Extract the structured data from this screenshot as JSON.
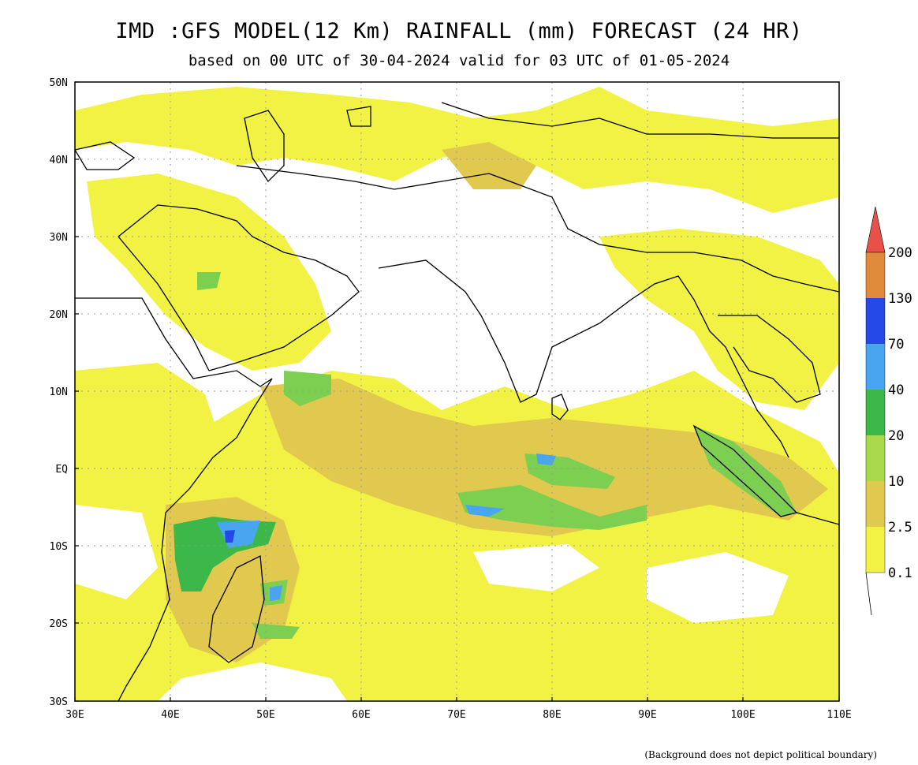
{
  "title": "IMD :GFS MODEL(12 Km) RAINFALL (mm) FORECAST (24 HR)",
  "subtitle": "based on 00 UTC of 30-04-2024 valid for 03 UTC of 01-05-2024",
  "disclaimer": "(Background does not depict political boundary)",
  "lat_labels": [
    "50N",
    "40N",
    "30N",
    "20N",
    "10N",
    "EQ",
    "10S",
    "20S",
    "30S"
  ],
  "lon_labels": [
    "30E",
    "40E",
    "50E",
    "60E",
    "70E",
    "80E",
    "90E",
    "100E",
    "110E"
  ],
  "legend": {
    "unit": "mm",
    "levels": [
      "0.1",
      "2.5",
      "10",
      "20",
      "40",
      "70",
      "130",
      "200"
    ],
    "colors": [
      "#f5f542",
      "#e0c94e",
      "#a9d94a",
      "#7ccf50",
      "#3cb84a",
      "#4aa5f0",
      "#2449e8",
      "#e08a3c",
      "#e8514a"
    ]
  },
  "colors": {
    "land_outline": "#000000",
    "grid": "#999999"
  }
}
